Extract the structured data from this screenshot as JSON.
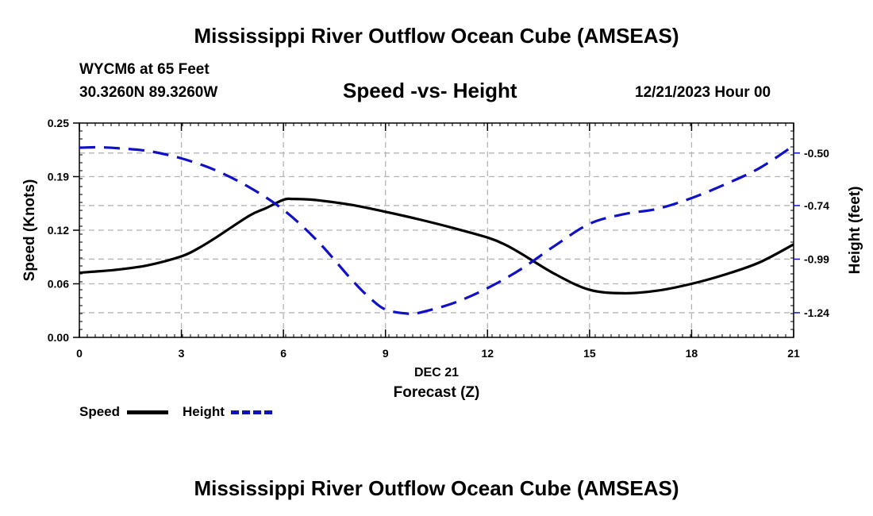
{
  "header": {
    "title": "Mississippi River Outflow Ocean Cube (AMSEAS)",
    "station": "WYCM6 at 65 Feet",
    "coords": "30.3260N  89.3260W",
    "subtitle": "Speed -vs- Height",
    "datetime": "12/21/2023 Hour 00"
  },
  "footer": {
    "title": "Mississippi River Outflow Ocean Cube (AMSEAS)"
  },
  "legend": {
    "speed_label": "Speed",
    "height_label": "Height"
  },
  "colors": {
    "speed": "#000000",
    "height": "#1010c8",
    "grid": "#b4b4b4"
  },
  "chart_data": {
    "type": "line",
    "title": "Speed -vs- Height",
    "xlabel": "Forecast (Z)",
    "xlabel_date": "DEC 21",
    "ylabel": "Speed (Knots)",
    "ylabel_right": "Height (feet)",
    "xlim": [
      0,
      21
    ],
    "ylim": [
      0,
      0.25
    ],
    "ylim_right": [
      -1.36,
      -0.36
    ],
    "x_ticks": [
      0,
      3,
      6,
      9,
      12,
      15,
      18,
      21
    ],
    "x_tick_labels": [
      "0",
      "3",
      "6",
      "9",
      "12",
      "15",
      "18",
      "21"
    ],
    "y_ticks": [
      0,
      0.0625,
      0.125,
      0.1875,
      0.25
    ],
    "y_tick_labels": [
      "0.00",
      "0.06",
      "0.12",
      "0.19",
      "0.25"
    ],
    "y_right_ticks": [
      -0.5,
      -0.745,
      -0.995,
      -1.245
    ],
    "y_right_tick_labels": [
      "-0.50",
      "-0.74",
      "-0.99",
      "-1.24"
    ],
    "grid": true,
    "legend_position": "bottom-left",
    "series": [
      {
        "name": "Speed",
        "axis": "left",
        "style": "solid",
        "x": [
          0,
          1,
          2,
          3,
          3.5,
          4,
          5,
          5.5,
          6,
          6.3,
          7,
          8,
          9,
          10,
          11,
          12,
          12.5,
          13,
          14,
          15,
          16,
          17,
          18,
          19,
          20,
          21
        ],
        "y": [
          0.0755,
          0.0785,
          0.084,
          0.0945,
          0.104,
          0.116,
          0.142,
          0.151,
          0.1605,
          0.1615,
          0.16,
          0.1545,
          0.1465,
          0.1375,
          0.1275,
          0.1165,
          0.1085,
          0.0975,
          0.0735,
          0.0555,
          0.0515,
          0.0545,
          0.0625,
          0.0735,
          0.0875,
          0.1085
        ]
      },
      {
        "name": "Height",
        "axis": "right",
        "style": "dashed",
        "x": [
          0,
          0.5,
          1,
          2,
          3,
          4,
          5,
          6,
          7,
          8,
          8.5,
          9,
          9.7,
          10,
          11,
          12,
          13,
          14,
          15,
          16,
          17,
          18,
          19,
          20,
          21
        ],
        "y": [
          -0.475,
          -0.473,
          -0.476,
          -0.49,
          -0.525,
          -0.58,
          -0.66,
          -0.765,
          -0.91,
          -1.09,
          -1.17,
          -1.23,
          -1.25,
          -1.245,
          -1.2,
          -1.13,
          -1.04,
          -0.93,
          -0.83,
          -0.785,
          -0.76,
          -0.71,
          -0.645,
          -0.57,
          -0.465
        ]
      }
    ]
  }
}
